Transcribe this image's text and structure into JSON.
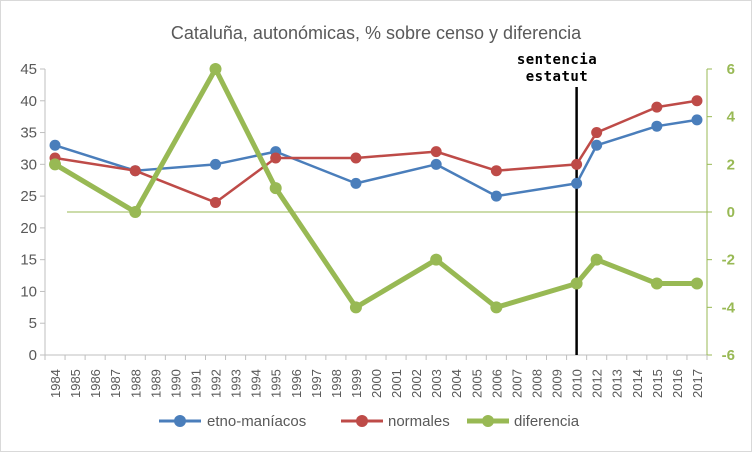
{
  "chart_data": {
    "type": "line",
    "title": "Cataluña, autonómicas, % sobre censo y diferencia",
    "categories": [
      "1984",
      "1985",
      "1986",
      "1987",
      "1988",
      "1989",
      "1990",
      "1991",
      "1992",
      "1993",
      "1994",
      "1995",
      "1996",
      "1997",
      "1998",
      "1999",
      "2000",
      "2001",
      "2002",
      "2003",
      "2004",
      "2005",
      "2006",
      "2007",
      "2008",
      "2009",
      "2010",
      "2012",
      "2013",
      "2014",
      "2015",
      "2016",
      "2017"
    ],
    "left_axis": {
      "min": 0,
      "max": 45,
      "ticks": [
        "0",
        "5",
        "10",
        "15",
        "20",
        "25",
        "30",
        "35",
        "40",
        "45"
      ]
    },
    "right_axis": {
      "min": -6,
      "max": 6,
      "ticks": [
        "-6",
        "-4",
        "-2",
        "0",
        "2",
        "4",
        "6"
      ]
    },
    "series": [
      {
        "name": "etno-maníacos",
        "axis": "left",
        "color": "#4a7ebb",
        "points": [
          [
            "1984",
            33
          ],
          [
            "1988",
            29
          ],
          [
            "1992",
            30
          ],
          [
            "1995",
            32
          ],
          [
            "1999",
            27
          ],
          [
            "2003",
            30
          ],
          [
            "2006",
            25
          ],
          [
            "2010",
            27
          ],
          [
            "2012",
            33
          ],
          [
            "2015",
            36
          ],
          [
            "2017",
            37
          ]
        ]
      },
      {
        "name": "normales",
        "axis": "left",
        "color": "#be4b48",
        "points": [
          [
            "1984",
            31
          ],
          [
            "1988",
            29
          ],
          [
            "1992",
            24
          ],
          [
            "1995",
            31
          ],
          [
            "1999",
            31
          ],
          [
            "2003",
            32
          ],
          [
            "2006",
            29
          ],
          [
            "2010",
            30
          ],
          [
            "2012",
            35
          ],
          [
            "2015",
            39
          ],
          [
            "2017",
            40
          ]
        ]
      },
      {
        "name": "diferencia",
        "axis": "right",
        "color": "#98b954",
        "points": [
          [
            "1984",
            2
          ],
          [
            "1988",
            0
          ],
          [
            "1992",
            6
          ],
          [
            "1995",
            1
          ],
          [
            "1999",
            -4
          ],
          [
            "2003",
            -2
          ],
          [
            "2006",
            -4
          ],
          [
            "2010",
            -3
          ],
          [
            "2012",
            -2
          ],
          [
            "2015",
            -3
          ],
          [
            "2017",
            -3
          ]
        ]
      }
    ],
    "annotation": {
      "lines": [
        "sentencia",
        "estatut"
      ],
      "at": "2010"
    },
    "legend": {
      "position": "bottom"
    }
  }
}
